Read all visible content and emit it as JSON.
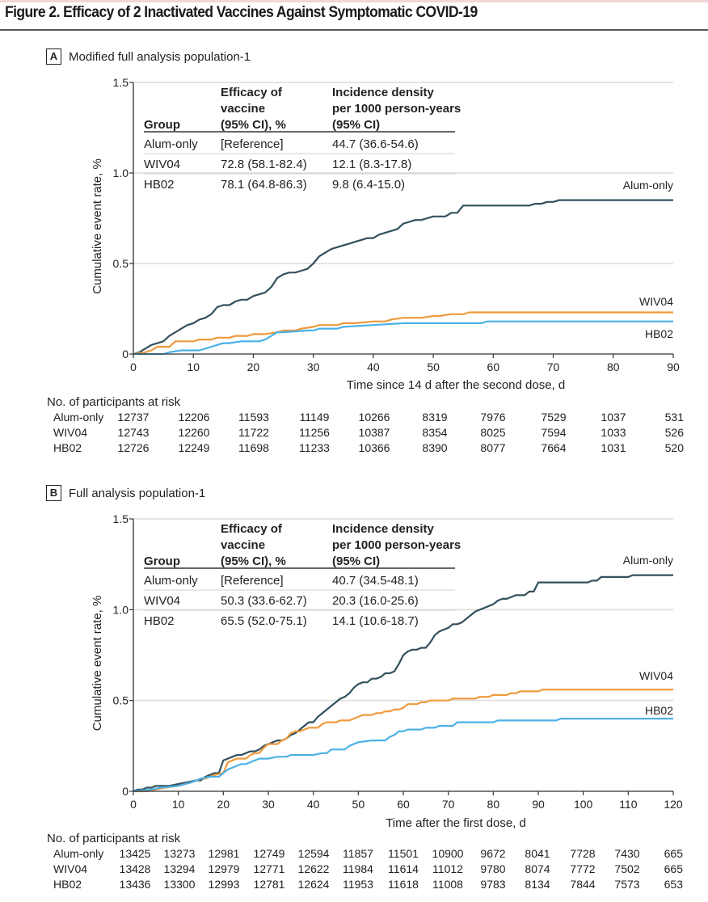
{
  "figure": {
    "title": "Figure 2. Efficacy of 2 Inactivated Vaccines Against Symptomatic COVID-19"
  },
  "colors": {
    "alum_only": "#34505e",
    "wiv04": "#ee9a3c",
    "hb02": "#4bb1e6"
  },
  "chart_data": [
    {
      "panel": "A",
      "panel_title": "Modified full analysis population-1",
      "type": "line",
      "step": true,
      "xlabel": "Time since 14 d after the second dose, d",
      "ylabel": "Cumulative event rate, %",
      "xlim": [
        0,
        90
      ],
      "ylim": [
        0,
        1.5
      ],
      "xticks": [
        "0",
        "10",
        "20",
        "30",
        "40",
        "50",
        "60",
        "70",
        "80",
        "90"
      ],
      "yticks": [
        "0",
        "0.5",
        "1.0",
        "1.5"
      ],
      "grid": true,
      "legend": "end-of-line labels (right)",
      "series": [
        {
          "name": "Alum-only",
          "x": [
            0,
            1,
            2,
            3,
            4,
            5,
            6,
            7,
            8,
            9,
            10,
            11,
            12,
            13,
            14,
            15,
            16,
            17,
            18,
            19,
            20,
            21,
            22,
            23,
            24,
            25,
            26,
            27,
            28,
            29,
            30,
            31,
            32,
            33,
            34,
            35,
            36,
            37,
            38,
            39,
            40,
            41,
            42,
            43,
            44,
            45,
            46,
            47,
            48,
            49,
            50,
            51,
            52,
            53,
            54,
            55,
            66,
            67,
            68,
            69,
            70,
            71,
            90
          ],
          "y": [
            0,
            0.01,
            0.03,
            0.05,
            0.06,
            0.07,
            0.1,
            0.12,
            0.14,
            0.16,
            0.17,
            0.19,
            0.2,
            0.22,
            0.26,
            0.27,
            0.27,
            0.29,
            0.3,
            0.3,
            0.32,
            0.33,
            0.34,
            0.37,
            0.42,
            0.44,
            0.45,
            0.45,
            0.46,
            0.47,
            0.5,
            0.54,
            0.56,
            0.58,
            0.59,
            0.6,
            0.61,
            0.62,
            0.63,
            0.64,
            0.64,
            0.66,
            0.67,
            0.68,
            0.69,
            0.72,
            0.73,
            0.74,
            0.74,
            0.75,
            0.76,
            0.76,
            0.76,
            0.78,
            0.78,
            0.82,
            0.82,
            0.83,
            0.83,
            0.84,
            0.84,
            0.85,
            0.85
          ]
        },
        {
          "name": "WIV04",
          "x": [
            0,
            2,
            3,
            4,
            6,
            7,
            10,
            11,
            13,
            14,
            16,
            17,
            18,
            19,
            20,
            21,
            22,
            24,
            25,
            27,
            28,
            30,
            31,
            34,
            35,
            37,
            40,
            42,
            43,
            45,
            47,
            48,
            50,
            51,
            53,
            55,
            56,
            90
          ],
          "y": [
            0,
            0.01,
            0.02,
            0.04,
            0.04,
            0.07,
            0.07,
            0.08,
            0.08,
            0.09,
            0.09,
            0.1,
            0.1,
            0.1,
            0.11,
            0.11,
            0.11,
            0.12,
            0.13,
            0.13,
            0.14,
            0.15,
            0.16,
            0.16,
            0.17,
            0.17,
            0.18,
            0.18,
            0.19,
            0.2,
            0.2,
            0.2,
            0.21,
            0.21,
            0.22,
            0.22,
            0.23,
            0.23
          ]
        },
        {
          "name": "HB02",
          "x": [
            0,
            4,
            5,
            6,
            8,
            11,
            12,
            13,
            14,
            15,
            16,
            18,
            19,
            21,
            22,
            23,
            24,
            25,
            29,
            30,
            31,
            34,
            35,
            40,
            45,
            58,
            59,
            90
          ],
          "y": [
            0,
            0,
            0,
            0.01,
            0.02,
            0.02,
            0.03,
            0.04,
            0.05,
            0.06,
            0.06,
            0.07,
            0.07,
            0.07,
            0.08,
            0.1,
            0.12,
            0.12,
            0.13,
            0.13,
            0.14,
            0.14,
            0.15,
            0.16,
            0.17,
            0.17,
            0.18,
            0.18
          ]
        }
      ],
      "inset_table": {
        "headers": [
          "Group",
          "Efficacy of\nvaccine\n(95% CI), %",
          "Incidence density\nper 1000 person-years\n(95% CI)"
        ],
        "header_lines": [
          [
            "Group"
          ],
          [
            "Efficacy of",
            "vaccine",
            "(95% CI), %"
          ],
          [
            "Incidence density",
            "per 1000 person-years",
            "(95% CI)"
          ]
        ],
        "rows": [
          [
            "Alum-only",
            "[Reference]",
            "44.7 (36.6-54.6)"
          ],
          [
            "WIV04",
            "72.8 (58.1-82.4)",
            "12.1 (8.3-17.8)"
          ],
          [
            "HB02",
            "78.1 (64.8-86.3)",
            "9.8 (6.4-15.0)"
          ]
        ]
      },
      "at_risk": {
        "title": "No. of participants at risk",
        "times": [
          0,
          10,
          20,
          30,
          40,
          50,
          60,
          70,
          80,
          90
        ],
        "rows": [
          {
            "group": "Alum-only",
            "values": [
              "12737",
              "12206",
              "11593",
              "11149",
              "10266",
              "8319",
              "7976",
              "7529",
              "1037",
              "531"
            ]
          },
          {
            "group": "WIV04",
            "values": [
              "12743",
              "12260",
              "11722",
              "11256",
              "10387",
              "8354",
              "8025",
              "7594",
              "1033",
              "526"
            ]
          },
          {
            "group": "HB02",
            "values": [
              "12726",
              "12249",
              "11698",
              "11233",
              "10366",
              "8390",
              "8077",
              "7664",
              "1031",
              "520"
            ]
          }
        ]
      }
    },
    {
      "panel": "B",
      "panel_title": "Full analysis population-1",
      "type": "line",
      "step": true,
      "xlabel": "Time after the first dose, d",
      "ylabel": "Cumulative event rate, %",
      "xlim": [
        0,
        120
      ],
      "ylim": [
        0,
        1.5
      ],
      "xticks": [
        "0",
        "10",
        "20",
        "30",
        "40",
        "50",
        "60",
        "70",
        "80",
        "90",
        "100",
        "110",
        "120"
      ],
      "yticks": [
        "0",
        "0.5",
        "1.0",
        "1.5"
      ],
      "grid": true,
      "legend": "end-of-line labels (right)",
      "series": [
        {
          "name": "Alum-only",
          "x": [
            0,
            1,
            2,
            3,
            4,
            5,
            6,
            8,
            10,
            12,
            14,
            15,
            16,
            17,
            18,
            19,
            20,
            21,
            22,
            23,
            24,
            25,
            26,
            27,
            28,
            29,
            30,
            31,
            32,
            33,
            34,
            35,
            36,
            37,
            38,
            39,
            40,
            41,
            42,
            43,
            44,
            45,
            46,
            47,
            48,
            49,
            50,
            51,
            52,
            53,
            54,
            55,
            56,
            57,
            58,
            59,
            60,
            61,
            62,
            63,
            64,
            65,
            66,
            67,
            68,
            69,
            70,
            71,
            72,
            73,
            74,
            75,
            76,
            77,
            78,
            79,
            80,
            81,
            82,
            83,
            84,
            85,
            86,
            87,
            88,
            89,
            90,
            101,
            102,
            103,
            104,
            110,
            111,
            120
          ],
          "y": [
            0,
            0.01,
            0.01,
            0.02,
            0.02,
            0.03,
            0.03,
            0.03,
            0.04,
            0.05,
            0.06,
            0.06,
            0.08,
            0.09,
            0.1,
            0.1,
            0.17,
            0.18,
            0.19,
            0.2,
            0.2,
            0.21,
            0.22,
            0.22,
            0.23,
            0.25,
            0.26,
            0.27,
            0.28,
            0.28,
            0.29,
            0.31,
            0.32,
            0.34,
            0.36,
            0.38,
            0.38,
            0.41,
            0.43,
            0.45,
            0.47,
            0.49,
            0.51,
            0.52,
            0.54,
            0.57,
            0.59,
            0.6,
            0.6,
            0.62,
            0.62,
            0.63,
            0.65,
            0.65,
            0.66,
            0.7,
            0.75,
            0.77,
            0.78,
            0.78,
            0.79,
            0.79,
            0.82,
            0.86,
            0.88,
            0.89,
            0.9,
            0.92,
            0.92,
            0.93,
            0.95,
            0.97,
            0.99,
            1.0,
            1.01,
            1.02,
            1.03,
            1.05,
            1.06,
            1.06,
            1.07,
            1.08,
            1.08,
            1.08,
            1.1,
            1.1,
            1.15,
            1.15,
            1.16,
            1.16,
            1.18,
            1.18,
            1.19,
            1.19
          ]
        },
        {
          "name": "WIV04",
          "x": [
            0,
            3,
            7,
            10,
            13,
            15,
            16,
            17,
            18,
            20,
            21,
            22,
            23,
            24,
            25,
            26,
            27,
            28,
            29,
            30,
            31,
            32,
            33,
            34,
            35,
            36,
            37,
            38,
            39,
            40,
            41,
            42,
            43,
            44,
            45,
            46,
            47,
            48,
            49,
            50,
            51,
            52,
            53,
            54,
            55,
            56,
            57,
            58,
            59,
            60,
            61,
            62,
            63,
            64,
            65,
            66,
            67,
            68,
            69,
            70,
            71,
            72,
            73,
            74,
            75,
            76,
            77,
            78,
            79,
            80,
            81,
            82,
            83,
            84,
            85,
            86,
            87,
            88,
            89,
            90,
            91,
            120
          ],
          "y": [
            0,
            0,
            0.02,
            0.03,
            0.05,
            0.07,
            0.07,
            0.08,
            0.09,
            0.1,
            0.16,
            0.17,
            0.18,
            0.18,
            0.18,
            0.2,
            0.21,
            0.21,
            0.24,
            0.26,
            0.26,
            0.26,
            0.28,
            0.29,
            0.32,
            0.33,
            0.33,
            0.34,
            0.35,
            0.35,
            0.35,
            0.37,
            0.38,
            0.38,
            0.38,
            0.39,
            0.39,
            0.39,
            0.4,
            0.41,
            0.42,
            0.42,
            0.42,
            0.43,
            0.43,
            0.44,
            0.44,
            0.45,
            0.45,
            0.46,
            0.48,
            0.48,
            0.48,
            0.49,
            0.49,
            0.5,
            0.5,
            0.5,
            0.5,
            0.5,
            0.51,
            0.51,
            0.51,
            0.51,
            0.51,
            0.51,
            0.52,
            0.52,
            0.52,
            0.53,
            0.53,
            0.53,
            0.53,
            0.54,
            0.54,
            0.55,
            0.55,
            0.55,
            0.55,
            0.55,
            0.56,
            0.56
          ]
        },
        {
          "name": "HB02",
          "x": [
            0,
            4,
            6,
            10,
            13,
            15,
            17,
            19,
            20,
            21,
            22,
            23,
            24,
            25,
            26,
            27,
            28,
            30,
            32,
            34,
            35,
            40,
            42,
            43,
            44,
            47,
            48,
            50,
            53,
            56,
            57,
            58,
            59,
            60,
            61,
            64,
            65,
            67,
            68,
            71,
            72,
            80,
            81,
            94,
            95,
            120
          ],
          "y": [
            0,
            0.01,
            0.02,
            0.03,
            0.05,
            0.07,
            0.08,
            0.08,
            0.1,
            0.12,
            0.13,
            0.14,
            0.15,
            0.15,
            0.16,
            0.17,
            0.18,
            0.18,
            0.19,
            0.19,
            0.2,
            0.2,
            0.21,
            0.21,
            0.23,
            0.23,
            0.25,
            0.27,
            0.28,
            0.28,
            0.3,
            0.31,
            0.33,
            0.33,
            0.34,
            0.34,
            0.35,
            0.35,
            0.36,
            0.36,
            0.38,
            0.38,
            0.39,
            0.39,
            0.4,
            0.4
          ]
        }
      ],
      "inset_table": {
        "header_lines": [
          [
            "Group"
          ],
          [
            "Efficacy of",
            "vaccine",
            "(95% CI), %"
          ],
          [
            "Incidence density",
            "per 1000 person-years",
            "(95% CI)"
          ]
        ],
        "rows": [
          [
            "Alum-only",
            "[Reference]",
            "40.7 (34.5-48.1)"
          ],
          [
            "WIV04",
            "50.3 (33.6-62.7)",
            "20.3 (16.0-25.6)"
          ],
          [
            "HB02",
            "65.5 (52.0-75.1)",
            "14.1 (10.6-18.7)"
          ]
        ]
      },
      "at_risk": {
        "title": "No. of participants at risk",
        "times": [
          0,
          10,
          20,
          30,
          40,
          50,
          60,
          70,
          80,
          90,
          100,
          110,
          120
        ],
        "rows": [
          {
            "group": "Alum-only",
            "values": [
              "13425",
              "13273",
              "12981",
              "12749",
              "12594",
              "11857",
              "11501",
              "10900",
              "9672",
              "8041",
              "7728",
              "7430",
              "665"
            ]
          },
          {
            "group": "WIV04",
            "values": [
              "13428",
              "13294",
              "12979",
              "12771",
              "12622",
              "11984",
              "11614",
              "11012",
              "9780",
              "8074",
              "7772",
              "7502",
              "665"
            ]
          },
          {
            "group": "HB02",
            "values": [
              "13436",
              "13300",
              "12993",
              "12781",
              "12624",
              "11953",
              "11618",
              "11008",
              "9783",
              "8134",
              "7844",
              "7573",
              "653"
            ]
          }
        ]
      }
    }
  ]
}
